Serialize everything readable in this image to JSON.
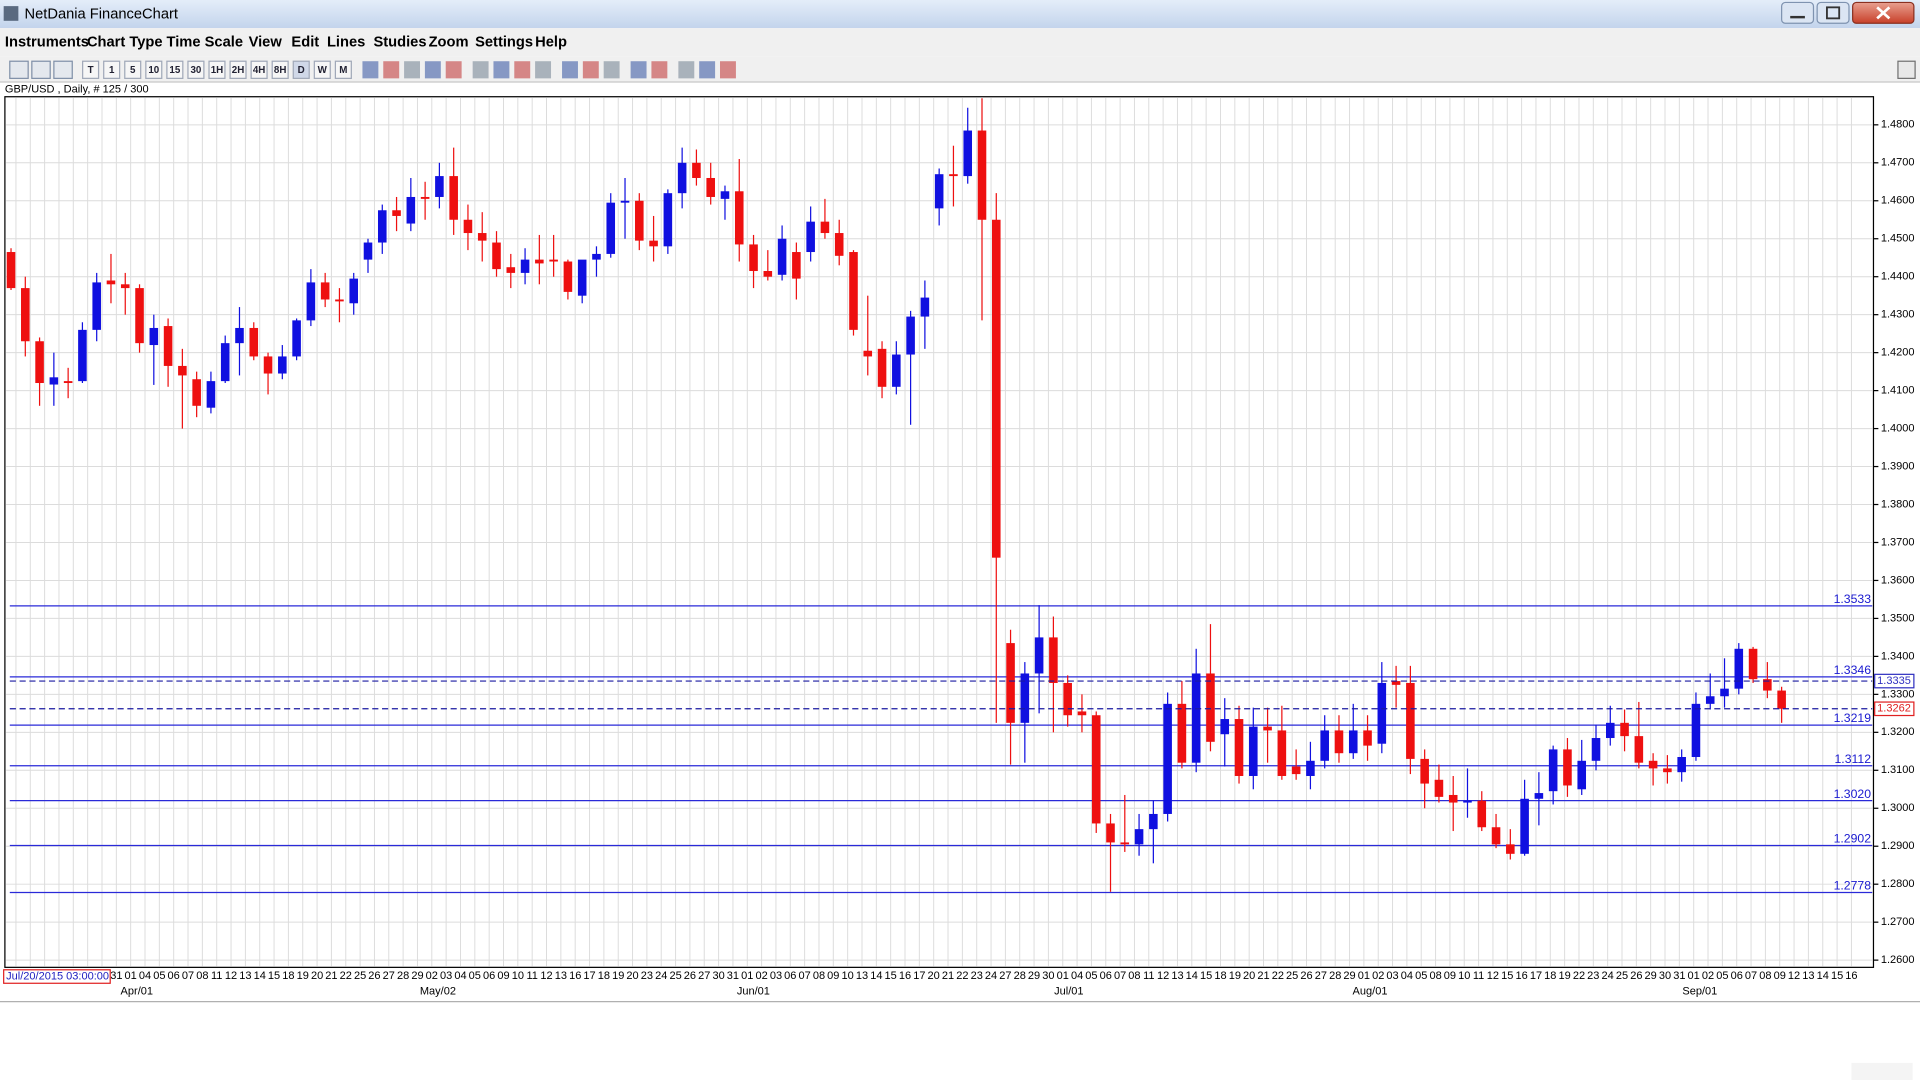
{
  "window": {
    "title": "NetDania FinanceChart"
  },
  "menu": [
    "Instruments",
    "Chart Type",
    "Time Scale",
    "View",
    "Edit",
    "Lines",
    "Studies",
    "Zoom",
    "Settings",
    "Help"
  ],
  "toolbar": {
    "timeframes": [
      "T",
      "1",
      "5",
      "10",
      "15",
      "30",
      "1H",
      "2H",
      "4H",
      "8H",
      "D",
      "W",
      "M"
    ]
  },
  "cursor_time": "Jul/20/2015 03:00:00",
  "chart_data": {
    "type": "candlestick",
    "title": "GBP/USD , Daily, # 125 / 300",
    "x_labels": [
      "31",
      "01",
      "04",
      "05",
      "06",
      "07",
      "08",
      "11",
      "12",
      "13",
      "14",
      "15",
      "18",
      "19",
      "20",
      "21",
      "22",
      "25",
      "26",
      "27",
      "28",
      "29",
      "02",
      "03",
      "04",
      "05",
      "06",
      "09",
      "10",
      "11",
      "12",
      "13",
      "16",
      "17",
      "18",
      "19",
      "20",
      "23",
      "24",
      "25",
      "26",
      "27",
      "30",
      "31",
      "01",
      "02",
      "03",
      "06",
      "07",
      "08",
      "09",
      "10",
      "13",
      "14",
      "15",
      "16",
      "17",
      "20",
      "21",
      "22",
      "23",
      "24",
      "27",
      "28",
      "29",
      "30",
      "01",
      "04",
      "05",
      "06",
      "07",
      "08",
      "11",
      "12",
      "13",
      "14",
      "15",
      "18",
      "19",
      "20",
      "21",
      "22",
      "25",
      "26",
      "27",
      "28",
      "29",
      "01",
      "02",
      "03",
      "04",
      "05",
      "08",
      "09",
      "10",
      "11",
      "12",
      "15",
      "16",
      "17",
      "18",
      "19",
      "22",
      "23",
      "24",
      "25",
      "26",
      "29",
      "30",
      "31",
      "01",
      "02",
      "05",
      "06",
      "07",
      "08",
      "09",
      "12",
      "13",
      "14",
      "15",
      "16"
    ],
    "month_labels": [
      "Apr/01",
      "May/02",
      "Jun/01",
      "Jul/01",
      "Aug/01",
      "Sep/01"
    ],
    "open": [
      1.4465,
      1.437,
      1.423,
      1.4116,
      1.4125,
      1.4125,
      1.426,
      1.439,
      1.438,
      1.437,
      1.422,
      1.427,
      1.4165,
      1.413,
      1.4055,
      1.4125,
      1.4225,
      1.4265,
      1.419,
      1.4145,
      1.419,
      1.4285,
      1.4385,
      1.434,
      1.433,
      1.4445,
      1.449,
      1.4575,
      1.454,
      1.461,
      1.461,
      1.4665,
      1.455,
      1.4515,
      1.449,
      1.4425,
      1.441,
      1.4445,
      1.4445,
      1.444,
      1.435,
      1.4445,
      1.446,
      1.4595,
      1.46,
      1.4495,
      1.448,
      1.462,
      1.47,
      1.466,
      1.4605,
      1.4625,
      1.4485,
      1.4415,
      1.4405,
      1.4465,
      1.4465,
      1.4545,
      1.4515,
      1.4465,
      1.4205,
      1.421,
      1.411,
      1.4195,
      1.4295,
      1.458,
      1.467,
      1.4665,
      1.4785,
      1.455,
      1.3435,
      1.3225,
      1.3355,
      1.345,
      1.333,
      1.3255,
      1.3245,
      1.296,
      1.291,
      1.2905,
      1.2945,
      1.2985,
      1.3275,
      1.312,
      1.3355,
      1.3195,
      1.3235,
      1.3085,
      1.3215,
      1.3205,
      1.311,
      1.3085,
      1.3125,
      1.3205,
      1.3145,
      1.3205,
      1.317,
      1.3335,
      1.333,
      1.313,
      1.3075,
      1.3035,
      1.3015,
      1.302,
      1.295,
      1.2905,
      1.288,
      1.3025,
      1.3045,
      1.3155,
      1.305,
      1.3125,
      1.3185,
      1.3225,
      1.319,
      1.3125,
      1.3105,
      1.3095,
      1.3135,
      1.3275,
      1.3295,
      1.3315,
      1.342,
      1.334,
      1.331
    ],
    "high": [
      1.4475,
      1.44,
      1.424,
      1.42,
      1.416,
      1.428,
      1.441,
      1.446,
      1.441,
      1.438,
      1.43,
      1.429,
      1.421,
      1.415,
      1.415,
      1.4245,
      1.432,
      1.428,
      1.42,
      1.422,
      1.429,
      1.442,
      1.441,
      1.437,
      1.441,
      1.45,
      1.459,
      1.461,
      1.466,
      1.465,
      1.47,
      1.474,
      1.459,
      1.457,
      1.452,
      1.446,
      1.4475,
      1.451,
      1.451,
      1.4445,
      1.444,
      1.448,
      1.462,
      1.466,
      1.462,
      1.456,
      1.463,
      1.474,
      1.4735,
      1.47,
      1.464,
      1.471,
      1.451,
      1.447,
      1.4535,
      1.449,
      1.4585,
      1.4605,
      1.455,
      1.447,
      1.435,
      1.423,
      1.423,
      1.431,
      1.439,
      1.4685,
      1.4745,
      1.4845,
      1.487,
      1.462,
      1.347,
      1.3385,
      1.3535,
      1.3505,
      1.335,
      1.33,
      1.3255,
      1.2985,
      1.3035,
      1.2985,
      1.302,
      1.3305,
      1.3335,
      1.342,
      1.3485,
      1.329,
      1.327,
      1.3265,
      1.3265,
      1.327,
      1.3155,
      1.3175,
      1.3245,
      1.3245,
      1.3275,
      1.3245,
      1.3385,
      1.3375,
      1.3375,
      1.3155,
      1.3115,
      1.3085,
      1.3105,
      1.3045,
      1.2985,
      1.2945,
      1.3075,
      1.3095,
      1.3165,
      1.3185,
      1.318,
      1.322,
      1.327,
      1.326,
      1.328,
      1.3145,
      1.314,
      1.3155,
      1.3305,
      1.3355,
      1.3395,
      1.3435,
      1.3425,
      1.3385,
      1.332
    ],
    "low": [
      1.4365,
      1.419,
      1.406,
      1.406,
      1.408,
      1.412,
      1.423,
      1.433,
      1.43,
      1.42,
      1.4115,
      1.411,
      1.4,
      1.403,
      1.404,
      1.412,
      1.414,
      1.418,
      1.409,
      1.413,
      1.418,
      1.427,
      1.432,
      1.428,
      1.43,
      1.441,
      1.446,
      1.452,
      1.452,
      1.455,
      1.458,
      1.451,
      1.447,
      1.444,
      1.44,
      1.437,
      1.438,
      1.438,
      1.44,
      1.434,
      1.433,
      1.44,
      1.445,
      1.45,
      1.447,
      1.444,
      1.446,
      1.458,
      1.464,
      1.459,
      1.455,
      1.444,
      1.437,
      1.439,
      1.439,
      1.434,
      1.444,
      1.45,
      1.443,
      1.4245,
      1.414,
      1.408,
      1.409,
      1.401,
      1.421,
      1.4535,
      1.4585,
      1.4645,
      1.4285,
      1.3225,
      1.3115,
      1.312,
      1.325,
      1.32,
      1.3215,
      1.32,
      1.2935,
      1.278,
      1.2885,
      1.2875,
      1.2855,
      1.2965,
      1.3105,
      1.3095,
      1.315,
      1.311,
      1.3065,
      1.305,
      1.312,
      1.3075,
      1.3075,
      1.305,
      1.3105,
      1.312,
      1.313,
      1.3125,
      1.3145,
      1.3265,
      1.309,
      1.3,
      1.3015,
      1.294,
      1.2975,
      1.294,
      1.2895,
      1.2865,
      1.2875,
      1.2955,
      1.301,
      1.303,
      1.3035,
      1.31,
      1.3165,
      1.315,
      1.3105,
      1.306,
      1.3065,
      1.307,
      1.3125,
      1.326,
      1.3265,
      1.33,
      1.333,
      1.329,
      1.3225
    ],
    "close": [
      1.437,
      1.423,
      1.412,
      1.4135,
      1.412,
      1.426,
      1.4385,
      1.438,
      1.437,
      1.4225,
      1.4265,
      1.4165,
      1.414,
      1.406,
      1.4125,
      1.4225,
      1.4265,
      1.419,
      1.4145,
      1.419,
      1.4285,
      1.4385,
      1.434,
      1.4335,
      1.4395,
      1.449,
      1.4575,
      1.456,
      1.461,
      1.4605,
      1.4665,
      1.455,
      1.4515,
      1.4495,
      1.442,
      1.441,
      1.4445,
      1.4435,
      1.444,
      1.436,
      1.4445,
      1.446,
      1.4595,
      1.46,
      1.4495,
      1.448,
      1.462,
      1.47,
      1.466,
      1.461,
      1.4625,
      1.4485,
      1.4415,
      1.44,
      1.45,
      1.4395,
      1.4545,
      1.4515,
      1.4455,
      1.426,
      1.419,
      1.411,
      1.4195,
      1.4295,
      1.4345,
      1.467,
      1.4665,
      1.4785,
      1.455,
      1.366,
      1.3225,
      1.3355,
      1.345,
      1.333,
      1.3245,
      1.3245,
      1.296,
      1.291,
      1.2905,
      1.2945,
      1.2985,
      1.3275,
      1.312,
      1.3355,
      1.3175,
      1.3235,
      1.3085,
      1.3215,
      1.3205,
      1.3085,
      1.309,
      1.3125,
      1.3205,
      1.3145,
      1.3205,
      1.3165,
      1.333,
      1.3325,
      1.313,
      1.3065,
      1.303,
      1.3015,
      1.302,
      1.295,
      1.2905,
      1.288,
      1.3025,
      1.304,
      1.3155,
      1.306,
      1.3125,
      1.3185,
      1.3225,
      1.319,
      1.312,
      1.3105,
      1.3095,
      1.3135,
      1.3275,
      1.3295,
      1.3315,
      1.342,
      1.334,
      1.331,
      1.3262
    ],
    "up_color": "#1010e0",
    "down_color": "#ee1010",
    "ylim": [
      1.2581,
      1.4874
    ],
    "yticks": [
      {
        "value": 1.26,
        "label": "1.2600"
      },
      {
        "value": 1.27,
        "label": "1.2700"
      },
      {
        "value": 1.28,
        "label": "1.2800"
      },
      {
        "value": 1.29,
        "label": "1.2900"
      },
      {
        "value": 1.3,
        "label": "1.3000"
      },
      {
        "value": 1.31,
        "label": "1.3100"
      },
      {
        "value": 1.32,
        "label": "1.3200"
      },
      {
        "value": 1.33,
        "label": "1.3300"
      },
      {
        "value": 1.34,
        "label": "1.3400"
      },
      {
        "value": 1.35,
        "label": "1.3500"
      },
      {
        "value": 1.36,
        "label": "1.3600"
      },
      {
        "value": 1.37,
        "label": "1.3700"
      },
      {
        "value": 1.38,
        "label": "1.3800"
      },
      {
        "value": 1.39,
        "label": "1.3900"
      },
      {
        "value": 1.4,
        "label": "1.4000"
      },
      {
        "value": 1.41,
        "label": "1.4100"
      },
      {
        "value": 1.42,
        "label": "1.4200"
      },
      {
        "value": 1.43,
        "label": "1.4300"
      },
      {
        "value": 1.44,
        "label": "1.4400"
      },
      {
        "value": 1.45,
        "label": "1.4500"
      },
      {
        "value": 1.46,
        "label": "1.4600"
      },
      {
        "value": 1.47,
        "label": "1.4700"
      },
      {
        "value": 1.48,
        "label": "1.4800"
      }
    ],
    "levels": [
      1.3533,
      1.3346,
      1.3219,
      1.3112,
      {
        "value": 1.302,
        "label": "1.3020"
      },
      1.2902,
      1.2778
    ],
    "level_color": "#2a2ad8",
    "price_markers": [
      1.3335,
      1.3262
    ],
    "grid": true
  }
}
